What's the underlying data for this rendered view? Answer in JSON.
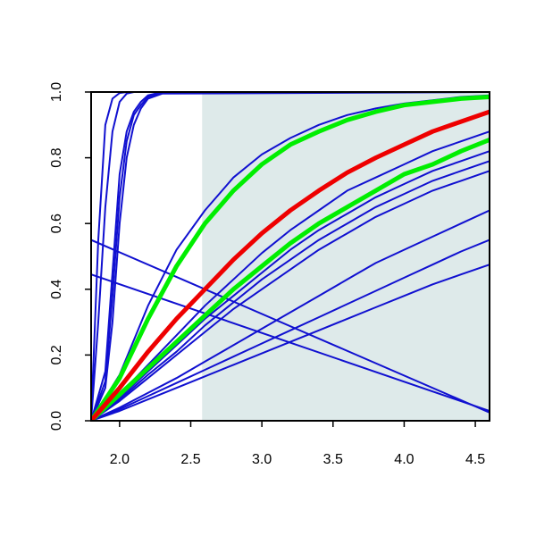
{
  "chart_data": {
    "type": "line",
    "title": "",
    "xlabel": "",
    "ylabel": "",
    "xlim": [
      1.8,
      4.6
    ],
    "ylim": [
      0.0,
      1.0
    ],
    "x_ticks": [
      "2.0",
      "2.5",
      "3.0",
      "3.5",
      "4.0",
      "4.5"
    ],
    "y_ticks": [
      "0.0",
      "0.2",
      "0.4",
      "0.6",
      "0.8",
      "1.0"
    ],
    "shaded_region": {
      "x_from": 2.58,
      "x_to": 4.6,
      "color": "#deeaea"
    },
    "colors": {
      "blue": "#1010d0",
      "green": "#00ee00",
      "red": "#ee0000",
      "axis": "#000000"
    },
    "series": [
      {
        "color": "blue",
        "width": 2,
        "x": [
          1.8,
          1.85,
          1.9,
          1.95,
          2.0,
          2.05,
          2.1,
          4.6
        ],
        "y": [
          0.0,
          0.55,
          0.9,
          0.98,
          0.997,
          1.0,
          1.0,
          1.0
        ]
      },
      {
        "color": "blue",
        "width": 2,
        "x": [
          1.8,
          1.85,
          1.9,
          1.95,
          2.0,
          2.05,
          2.1,
          4.6
        ],
        "y": [
          0.0,
          0.3,
          0.65,
          0.88,
          0.97,
          0.995,
          1.0,
          1.0
        ]
      },
      {
        "color": "blue",
        "width": 2,
        "x": [
          1.8,
          1.9,
          1.95,
          2.0,
          2.05,
          2.1,
          2.15,
          2.2,
          2.3,
          4.6
        ],
        "y": [
          0.0,
          0.15,
          0.45,
          0.75,
          0.88,
          0.94,
          0.97,
          0.99,
          1.0,
          1.0
        ]
      },
      {
        "color": "blue",
        "width": 2,
        "x": [
          1.8,
          1.9,
          1.95,
          2.0,
          2.05,
          2.1,
          2.15,
          2.2,
          2.3,
          4.6
        ],
        "y": [
          0.0,
          0.12,
          0.38,
          0.68,
          0.85,
          0.93,
          0.96,
          0.985,
          1.0,
          1.0
        ]
      },
      {
        "color": "blue",
        "width": 2,
        "x": [
          1.8,
          1.9,
          1.95,
          2.0,
          2.05,
          2.1,
          2.15,
          2.2,
          2.3,
          4.6
        ],
        "y": [
          0.0,
          0.1,
          0.3,
          0.6,
          0.8,
          0.9,
          0.95,
          0.98,
          0.995,
          1.0
        ]
      },
      {
        "color": "blue",
        "width": 2,
        "x": [
          1.8,
          2.0,
          2.2,
          2.4,
          2.6,
          2.8,
          3.0,
          3.2,
          3.4,
          3.6,
          3.8,
          4.0,
          4.2,
          4.4,
          4.6
        ],
        "y": [
          0.0,
          0.14,
          0.35,
          0.52,
          0.64,
          0.74,
          0.81,
          0.86,
          0.9,
          0.93,
          0.95,
          0.965,
          0.975,
          0.985,
          0.99
        ]
      },
      {
        "color": "blue",
        "width": 2,
        "x": [
          1.8,
          2.0,
          2.2,
          2.4,
          2.6,
          2.8,
          3.0,
          3.2,
          3.4,
          3.6,
          3.8,
          4.0,
          4.2,
          4.4,
          4.6
        ],
        "y": [
          0.0,
          0.08,
          0.17,
          0.26,
          0.35,
          0.43,
          0.51,
          0.58,
          0.64,
          0.7,
          0.74,
          0.78,
          0.82,
          0.85,
          0.88
        ]
      },
      {
        "color": "blue",
        "width": 2,
        "x": [
          1.8,
          2.0,
          2.2,
          2.4,
          2.6,
          2.8,
          3.0,
          3.2,
          3.4,
          3.6,
          3.8,
          4.0,
          4.2,
          4.4,
          4.6
        ],
        "y": [
          0.0,
          0.07,
          0.15,
          0.23,
          0.31,
          0.38,
          0.45,
          0.52,
          0.58,
          0.63,
          0.68,
          0.72,
          0.76,
          0.79,
          0.82
        ]
      },
      {
        "color": "blue",
        "width": 2,
        "x": [
          1.8,
          2.0,
          2.2,
          2.4,
          2.6,
          2.8,
          3.0,
          3.2,
          3.4,
          3.6,
          3.8,
          4.0,
          4.2,
          4.4,
          4.6
        ],
        "y": [
          0.0,
          0.065,
          0.14,
          0.21,
          0.29,
          0.36,
          0.43,
          0.49,
          0.55,
          0.6,
          0.65,
          0.69,
          0.73,
          0.76,
          0.79
        ]
      },
      {
        "color": "blue",
        "width": 2,
        "x": [
          1.8,
          2.0,
          2.2,
          2.4,
          2.6,
          2.8,
          3.0,
          3.2,
          3.4,
          3.6,
          3.8,
          4.0,
          4.2,
          4.4,
          4.6
        ],
        "y": [
          0.0,
          0.06,
          0.13,
          0.2,
          0.27,
          0.34,
          0.4,
          0.46,
          0.52,
          0.57,
          0.62,
          0.66,
          0.7,
          0.73,
          0.76
        ]
      },
      {
        "color": "blue",
        "width": 2,
        "x": [
          1.8,
          2.0,
          2.2,
          2.4,
          2.6,
          2.8,
          3.0,
          3.2,
          3.4,
          3.6,
          3.8,
          4.0,
          4.2,
          4.4,
          4.6
        ],
        "y": [
          0.0,
          0.04,
          0.085,
          0.13,
          0.18,
          0.23,
          0.28,
          0.33,
          0.38,
          0.43,
          0.48,
          0.52,
          0.56,
          0.6,
          0.64
        ]
      },
      {
        "color": "blue",
        "width": 2,
        "x": [
          1.8,
          2.0,
          2.2,
          2.4,
          2.6,
          2.8,
          3.0,
          3.2,
          3.4,
          3.6,
          3.8,
          4.0,
          4.2,
          4.4,
          4.6
        ],
        "y": [
          0.0,
          0.035,
          0.075,
          0.115,
          0.155,
          0.195,
          0.235,
          0.275,
          0.315,
          0.355,
          0.395,
          0.435,
          0.475,
          0.515,
          0.55
        ]
      },
      {
        "color": "blue",
        "width": 2,
        "x": [
          1.8,
          2.0,
          2.2,
          2.4,
          2.6,
          2.8,
          3.0,
          3.2,
          3.4,
          3.6,
          3.8,
          4.0,
          4.2,
          4.4,
          4.6
        ],
        "y": [
          0.0,
          0.03,
          0.065,
          0.1,
          0.135,
          0.17,
          0.205,
          0.24,
          0.275,
          0.31,
          0.345,
          0.38,
          0.415,
          0.445,
          0.475
        ]
      },
      {
        "color": "blue",
        "width": 2,
        "x": [
          1.8,
          4.6
        ],
        "y": [
          0.55,
          0.025
        ]
      },
      {
        "color": "blue",
        "width": 2,
        "x": [
          1.8,
          4.6
        ],
        "y": [
          0.445,
          0.03
        ]
      },
      {
        "color": "green",
        "width": 5,
        "x": [
          1.8,
          2.0,
          2.2,
          2.4,
          2.6,
          2.8,
          3.0,
          3.2,
          3.4,
          3.6,
          3.8,
          4.0,
          4.2,
          4.4,
          4.6
        ],
        "y": [
          0.0,
          0.13,
          0.31,
          0.47,
          0.6,
          0.7,
          0.78,
          0.84,
          0.88,
          0.915,
          0.94,
          0.96,
          0.97,
          0.98,
          0.985
        ]
      },
      {
        "color": "green",
        "width": 5,
        "x": [
          1.8,
          2.0,
          2.2,
          2.4,
          2.6,
          2.8,
          3.0,
          3.2,
          3.4,
          3.6,
          3.8,
          4.0,
          4.2,
          4.4,
          4.6
        ],
        "y": [
          0.0,
          0.08,
          0.16,
          0.24,
          0.32,
          0.4,
          0.47,
          0.54,
          0.6,
          0.65,
          0.7,
          0.75,
          0.78,
          0.82,
          0.855
        ]
      },
      {
        "color": "red",
        "width": 5,
        "x": [
          1.8,
          2.0,
          2.2,
          2.4,
          2.6,
          2.8,
          3.0,
          3.2,
          3.4,
          3.6,
          3.8,
          4.0,
          4.2,
          4.4,
          4.6
        ],
        "y": [
          0.0,
          0.1,
          0.21,
          0.31,
          0.4,
          0.49,
          0.57,
          0.64,
          0.7,
          0.755,
          0.8,
          0.84,
          0.88,
          0.91,
          0.94
        ]
      }
    ]
  }
}
